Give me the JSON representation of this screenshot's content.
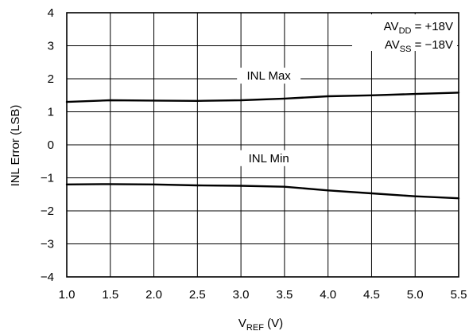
{
  "chart_data": {
    "type": "line",
    "title": "",
    "xlabel": {
      "main": "V",
      "sub": "REF",
      "unit": " (V)"
    },
    "ylabel": "INL Error (LSB)",
    "xlim": [
      1.0,
      5.5
    ],
    "ylim": [
      -4,
      4
    ],
    "grid": true,
    "x_ticks": [
      "1.0",
      "1.5",
      "2.0",
      "2.5",
      "3.0",
      "3.5",
      "4.0",
      "4.5",
      "5.0",
      "5.5"
    ],
    "y_ticks": [
      "4",
      "3",
      "2",
      "1",
      "0",
      "−1",
      "−2",
      "−3",
      "−4"
    ],
    "series": [
      {
        "name": "INL Max",
        "x": [
          1.0,
          1.5,
          2.0,
          2.5,
          3.0,
          3.5,
          4.0,
          4.5,
          5.0,
          5.5
        ],
        "y": [
          1.3,
          1.35,
          1.34,
          1.33,
          1.35,
          1.4,
          1.47,
          1.5,
          1.54,
          1.58
        ]
      },
      {
        "name": "INL Min",
        "x": [
          1.0,
          1.5,
          2.0,
          2.5,
          3.0,
          3.5,
          4.0,
          4.5,
          5.0,
          5.5
        ],
        "y": [
          -1.2,
          -1.19,
          -1.2,
          -1.23,
          -1.24,
          -1.27,
          -1.38,
          -1.47,
          -1.56,
          -1.62
        ]
      }
    ],
    "annotations": {
      "avdd": {
        "main": "AV",
        "sub": "DD",
        "value": " = +18V"
      },
      "avss": {
        "main": "AV",
        "sub": "SS",
        "value": " = −18V"
      }
    }
  }
}
